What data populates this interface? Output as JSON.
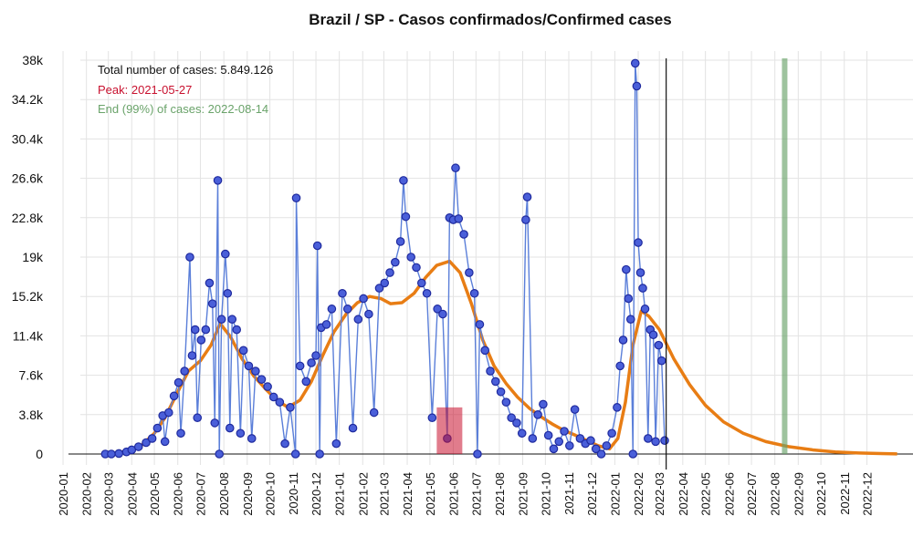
{
  "chart_data": {
    "type": "line",
    "title": "Brazil / SP - Casos confirmados/Confirmed cases",
    "xlabel": "",
    "ylabel": "",
    "ylim": [
      0,
      38000
    ],
    "yticks": [
      0,
      3800,
      7600,
      11400,
      15200,
      19000,
      22800,
      26600,
      30400,
      34200,
      38000
    ],
    "ytick_labels": [
      "0",
      "3.8k",
      "7.6k",
      "11.4k",
      "15.2k",
      "19k",
      "22.8k",
      "26.6k",
      "30.4k",
      "34.2k",
      "38k"
    ],
    "xlim": [
      "2019-12-15",
      "2023-01-31"
    ],
    "xtick_labels": [
      "2020-01",
      "2020-02",
      "2020-03",
      "2020-04",
      "2020-05",
      "2020-06",
      "2020-07",
      "2020-08",
      "2020-09",
      "2020-10",
      "2020-11",
      "2020-12",
      "2021-01",
      "2021-02",
      "2021-03",
      "2021-04",
      "2021-05",
      "2021-06",
      "2021-07",
      "2021-08",
      "2021-09",
      "2021-10",
      "2021-11",
      "2021-12",
      "2022-01",
      "2022-02",
      "2022-03",
      "2022-04",
      "2022-05",
      "2022-06",
      "2022-07",
      "2022-08",
      "2022-09",
      "2022-10",
      "2022-11",
      "2022-12"
    ],
    "grid": true,
    "annotations": {
      "total": "Total number of cases: 5.849.126",
      "peak": "Peak: 2021-05-27",
      "end": "End (99%) of cases: 2022-08-14"
    },
    "last_data_date": "2022-03-10",
    "peak_date": "2021-05-27",
    "end_date": "2022-08-14",
    "series": [
      {
        "kind": "observed",
        "color": "#1f2a9e",
        "line_color": "#5b7fd9",
        "points": [
          [
            "2020-02-26",
            0
          ],
          [
            "2020-03-05",
            0
          ],
          [
            "2020-03-15",
            50
          ],
          [
            "2020-03-25",
            200
          ],
          [
            "2020-04-01",
            400
          ],
          [
            "2020-04-10",
            700
          ],
          [
            "2020-04-20",
            1100
          ],
          [
            "2020-04-28",
            1500
          ],
          [
            "2020-05-05",
            2500
          ],
          [
            "2020-05-12",
            3700
          ],
          [
            "2020-05-15",
            1200
          ],
          [
            "2020-05-20",
            4000
          ],
          [
            "2020-05-27",
            5600
          ],
          [
            "2020-06-02",
            6900
          ],
          [
            "2020-06-05",
            2000
          ],
          [
            "2020-06-10",
            8000
          ],
          [
            "2020-06-17",
            19000
          ],
          [
            "2020-06-20",
            9500
          ],
          [
            "2020-06-24",
            12000
          ],
          [
            "2020-06-27",
            3500
          ],
          [
            "2020-07-02",
            11000
          ],
          [
            "2020-07-08",
            12000
          ],
          [
            "2020-07-13",
            16500
          ],
          [
            "2020-07-17",
            14500
          ],
          [
            "2020-07-20",
            3000
          ],
          [
            "2020-07-24",
            26400
          ],
          [
            "2020-07-26",
            0
          ],
          [
            "2020-07-29",
            13000
          ],
          [
            "2020-08-03",
            19300
          ],
          [
            "2020-08-06",
            15500
          ],
          [
            "2020-08-09",
            2500
          ],
          [
            "2020-08-12",
            13000
          ],
          [
            "2020-08-18",
            12000
          ],
          [
            "2020-08-23",
            2000
          ],
          [
            "2020-08-27",
            10000
          ],
          [
            "2020-09-03",
            8500
          ],
          [
            "2020-09-07",
            1500
          ],
          [
            "2020-09-12",
            8000
          ],
          [
            "2020-09-20",
            7200
          ],
          [
            "2020-09-28",
            6500
          ],
          [
            "2020-10-06",
            5500
          ],
          [
            "2020-10-14",
            5000
          ],
          [
            "2020-10-21",
            1000
          ],
          [
            "2020-10-28",
            4500
          ],
          [
            "2020-11-04",
            0
          ],
          [
            "2020-11-05",
            24700
          ],
          [
            "2020-11-10",
            8500
          ],
          [
            "2020-11-18",
            7000
          ],
          [
            "2020-11-25",
            8800
          ],
          [
            "2020-12-01",
            9500
          ],
          [
            "2020-12-03",
            20100
          ],
          [
            "2020-12-06",
            0
          ],
          [
            "2020-12-08",
            12200
          ],
          [
            "2020-12-15",
            12500
          ],
          [
            "2020-12-22",
            14000
          ],
          [
            "2020-12-28",
            1000
          ],
          [
            "2021-01-05",
            15500
          ],
          [
            "2021-01-12",
            14000
          ],
          [
            "2021-01-19",
            2500
          ],
          [
            "2021-01-26",
            13000
          ],
          [
            "2021-02-02",
            15000
          ],
          [
            "2021-02-09",
            13500
          ],
          [
            "2021-02-16",
            4000
          ],
          [
            "2021-02-23",
            16000
          ],
          [
            "2021-03-02",
            16500
          ],
          [
            "2021-03-09",
            17500
          ],
          [
            "2021-03-16",
            18500
          ],
          [
            "2021-03-23",
            20500
          ],
          [
            "2021-03-27",
            26400
          ],
          [
            "2021-03-30",
            22900
          ],
          [
            "2021-04-06",
            19000
          ],
          [
            "2021-04-13",
            18000
          ],
          [
            "2021-04-20",
            16500
          ],
          [
            "2021-04-27",
            15500
          ],
          [
            "2021-05-04",
            3500
          ],
          [
            "2021-05-11",
            14000
          ],
          [
            "2021-05-18",
            13500
          ],
          [
            "2021-05-24",
            1500
          ],
          [
            "2021-05-27",
            22800
          ],
          [
            "2021-06-01",
            22600
          ],
          [
            "2021-06-04",
            27600
          ],
          [
            "2021-06-08",
            22700
          ],
          [
            "2021-06-15",
            21200
          ],
          [
            "2021-06-22",
            17500
          ],
          [
            "2021-06-29",
            15500
          ],
          [
            "2021-07-03",
            0
          ],
          [
            "2021-07-06",
            12500
          ],
          [
            "2021-07-13",
            10000
          ],
          [
            "2021-07-20",
            8000
          ],
          [
            "2021-07-27",
            7000
          ],
          [
            "2021-08-03",
            6000
          ],
          [
            "2021-08-10",
            5000
          ],
          [
            "2021-08-17",
            3500
          ],
          [
            "2021-08-24",
            3000
          ],
          [
            "2021-08-31",
            2000
          ],
          [
            "2021-09-05",
            22600
          ],
          [
            "2021-09-07",
            24800
          ],
          [
            "2021-09-14",
            1500
          ],
          [
            "2021-09-21",
            3800
          ],
          [
            "2021-09-28",
            4800
          ],
          [
            "2021-10-05",
            1800
          ],
          [
            "2021-10-12",
            500
          ],
          [
            "2021-10-19",
            1200
          ],
          [
            "2021-10-26",
            2200
          ],
          [
            "2021-11-02",
            800
          ],
          [
            "2021-11-09",
            4300
          ],
          [
            "2021-11-16",
            1500
          ],
          [
            "2021-11-23",
            1000
          ],
          [
            "2021-11-30",
            1300
          ],
          [
            "2021-12-07",
            500
          ],
          [
            "2021-12-14",
            0
          ],
          [
            "2021-12-21",
            800
          ],
          [
            "2021-12-28",
            2000
          ],
          [
            "2022-01-04",
            4500
          ],
          [
            "2022-01-08",
            8500
          ],
          [
            "2022-01-12",
            11000
          ],
          [
            "2022-01-16",
            17800
          ],
          [
            "2022-01-19",
            15000
          ],
          [
            "2022-01-22",
            13000
          ],
          [
            "2022-01-25",
            0
          ],
          [
            "2022-01-28",
            37700
          ],
          [
            "2022-01-30",
            35500
          ],
          [
            "2022-02-01",
            20400
          ],
          [
            "2022-02-04",
            17500
          ],
          [
            "2022-02-07",
            16000
          ],
          [
            "2022-02-10",
            14000
          ],
          [
            "2022-02-14",
            1500
          ],
          [
            "2022-02-17",
            12000
          ],
          [
            "2022-02-21",
            11500
          ],
          [
            "2022-02-24",
            1200
          ],
          [
            "2022-02-28",
            10500
          ],
          [
            "2022-03-04",
            9000
          ],
          [
            "2022-03-08",
            1300
          ]
        ]
      },
      {
        "kind": "fitted",
        "color": "#e87d14",
        "points": [
          [
            "2020-02-26",
            0
          ],
          [
            "2020-03-15",
            100
          ],
          [
            "2020-04-01",
            400
          ],
          [
            "2020-04-15",
            900
          ],
          [
            "2020-05-01",
            2000
          ],
          [
            "2020-05-15",
            3500
          ],
          [
            "2020-06-01",
            6000
          ],
          [
            "2020-06-15",
            8000
          ],
          [
            "2020-07-01",
            9000
          ],
          [
            "2020-07-15",
            10500
          ],
          [
            "2020-07-27",
            12600
          ],
          [
            "2020-08-10",
            11300
          ],
          [
            "2020-08-25",
            9200
          ],
          [
            "2020-09-10",
            7500
          ],
          [
            "2020-09-25",
            6300
          ],
          [
            "2020-10-10",
            5200
          ],
          [
            "2020-10-25",
            4500
          ],
          [
            "2020-11-10",
            5200
          ],
          [
            "2020-11-25",
            7000
          ],
          [
            "2020-12-10",
            9500
          ],
          [
            "2020-12-25",
            11800
          ],
          [
            "2021-01-10",
            13500
          ],
          [
            "2021-01-25",
            14600
          ],
          [
            "2021-02-10",
            15200
          ],
          [
            "2021-02-25",
            15000
          ],
          [
            "2021-03-10",
            14500
          ],
          [
            "2021-03-25",
            14600
          ],
          [
            "2021-04-10",
            15500
          ],
          [
            "2021-04-25",
            17000
          ],
          [
            "2021-05-10",
            18200
          ],
          [
            "2021-05-27",
            18600
          ],
          [
            "2021-06-10",
            17500
          ],
          [
            "2021-06-25",
            14500
          ],
          [
            "2021-07-10",
            11000
          ],
          [
            "2021-07-25",
            8500
          ],
          [
            "2021-08-10",
            6800
          ],
          [
            "2021-08-25",
            5500
          ],
          [
            "2021-09-10",
            4400
          ],
          [
            "2021-09-25",
            3600
          ],
          [
            "2021-10-10",
            2900
          ],
          [
            "2021-10-25",
            2300
          ],
          [
            "2021-11-10",
            1800
          ],
          [
            "2021-11-25",
            1300
          ],
          [
            "2021-12-10",
            800
          ],
          [
            "2021-12-25",
            500
          ],
          [
            "2022-01-05",
            1500
          ],
          [
            "2022-01-15",
            5000
          ],
          [
            "2022-01-25",
            10500
          ],
          [
            "2022-02-05",
            13800
          ],
          [
            "2022-02-15",
            13300
          ],
          [
            "2022-03-01",
            12000
          ],
          [
            "2022-03-20",
            9200
          ],
          [
            "2022-04-10",
            6700
          ],
          [
            "2022-05-01",
            4700
          ],
          [
            "2022-05-25",
            3100
          ],
          [
            "2022-06-20",
            2000
          ],
          [
            "2022-07-20",
            1200
          ],
          [
            "2022-08-20",
            700
          ],
          [
            "2022-09-20",
            400
          ],
          [
            "2022-10-20",
            200
          ],
          [
            "2022-11-20",
            100
          ],
          [
            "2022-12-20",
            40
          ],
          [
            "2023-01-10",
            10
          ]
        ]
      }
    ]
  }
}
